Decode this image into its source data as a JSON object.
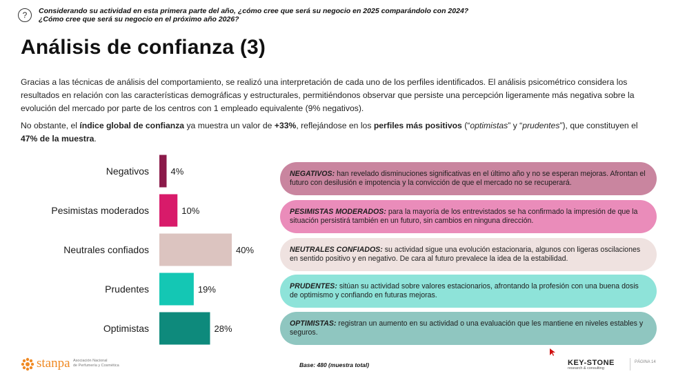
{
  "header": {
    "question_icon": "question-circle-icon",
    "question_line1": "Considerando su actividad en esta primera parte del año, ¿cómo cree que será su negocio en 2025 comparándolo con 2024?",
    "question_line2": "¿Cómo cree que será su negocio en el próximo año 2026?"
  },
  "title": "Análisis de confianza (3)",
  "intro": {
    "p1": "Gracias a las técnicas de análisis del comportamiento, se realizó una interpretación de cada uno de los perfiles identificados. El análisis psicométrico considera los resultados en relación con las características demográficas y estructurales, permitiéndonos observar que persiste una percepción ligeramente más negativa sobre la evolución del mercado por parte de los centros con 1 empleado equivalente (9% negativos).",
    "p2_a": "No obstante, el ",
    "p2_b": "índice global de confianza",
    "p2_c": " ya muestra un valor de ",
    "p2_d": "+33%",
    "p2_e": ", reflejándose en los ",
    "p2_f": "perfiles más positivos",
    "p2_g": " (“",
    "p2_h": "optimistas",
    "p2_i": "” y “",
    "p2_j": "prudentes",
    "p2_k": "”), que constituyen el ",
    "p2_l": "47% de la muestra",
    "p2_m": "."
  },
  "chart_data": {
    "type": "bar",
    "orientation": "horizontal",
    "categories": [
      "Negativos",
      "Pesimistas moderados",
      "Neutrales confiados",
      "Prudentes",
      "Optimistas"
    ],
    "values": [
      4,
      10,
      40,
      19,
      28
    ],
    "data_labels": [
      "4%",
      "10%",
      "40%",
      "19%",
      "28%"
    ],
    "colors": [
      "#8b1a4a",
      "#d81b6a",
      "#dcc4c0",
      "#14c7b4",
      "#0e8a7c"
    ],
    "grid": false,
    "xlim": [
      0,
      40
    ]
  },
  "profiles": [
    {
      "name": "NEGATIVOS:",
      "text": " han revelado disminuciones significativas en el último año y no se esperan mejoras. Afrontan el futuro con desilusión e impotencia y la convicción de que el mercado no se recuperará.",
      "bg": "#c9859f"
    },
    {
      "name": "PESIMISTAS MODERADOS:",
      "text": " para la mayoría de los entrevistados se ha confirmado la impresión de que la situación persistirá también en un futuro, sin cambios en ninguna dirección.",
      "bg": "#ea8cba"
    },
    {
      "name": "NEUTRALES CONFIADOS:",
      "text": " su actividad sigue una evolución estacionaria, algunos con ligeras oscilaciones en sentido positivo y en negativo. De cara al futuro prevalece la idea de la estabilidad.",
      "bg": "#efe2e0"
    },
    {
      "name": "PRUDENTES:",
      "text": " sitúan su actividad sobre valores estacionarios, afrontando la profesión con una buena dosis de optimismo y confiando en futuras mejoras.",
      "bg": "#8ee3d9"
    },
    {
      "name": "OPTIMISTAS:",
      "text": " registran un aumento en su actividad o una evaluación que les mantiene en niveles estables y seguros.",
      "bg": "#8fc6c0"
    }
  ],
  "footer": {
    "brand": "stanpa",
    "brand_sub1": "Asociación Nacional",
    "brand_sub2": "de Perfumería y Cosmética",
    "brand_icon": "sun-flower-icon",
    "base": "Base: 480 (muestra total)",
    "keystone": "KEY-STONE",
    "keystone_sub": "research & consulting",
    "page": "PÁGINA 14",
    "accent": "#f08a24"
  }
}
